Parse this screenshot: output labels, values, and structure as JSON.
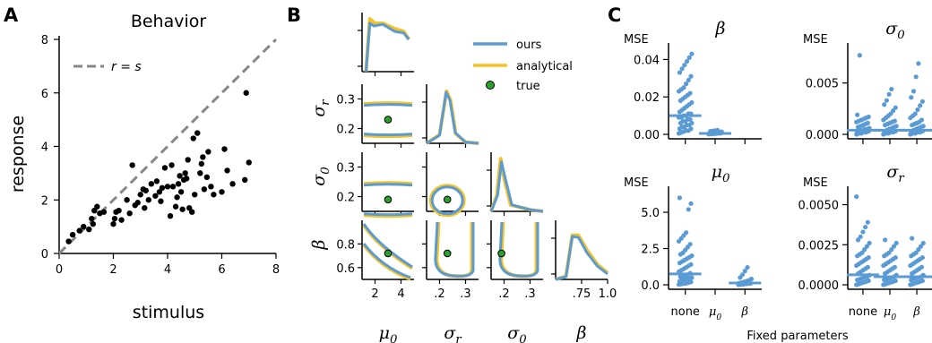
{
  "colors": {
    "ours": "#5b9bd5",
    "analytical": "#f6c324",
    "true_marker": "#2ca02c",
    "identity_line": "#888888",
    "points": "#000000"
  },
  "panels": {
    "a": "A",
    "b": "B",
    "c": "C"
  },
  "chart_data": [
    {
      "id": "A",
      "type": "scatter",
      "title": "Behavior",
      "xlabel": "stimulus",
      "ylabel": "response",
      "xlim": [
        0,
        8
      ],
      "ylim": [
        0,
        8
      ],
      "xticks": [
        "0",
        "2",
        "4",
        "6",
        "8"
      ],
      "yticks": [
        "0",
        "2",
        "4",
        "6",
        "8"
      ],
      "legend": {
        "position": "top-left",
        "label": "r = s",
        "style": "dashed"
      },
      "identity_line": [
        [
          0,
          0
        ],
        [
          8,
          8
        ]
      ],
      "points": [
        [
          0.35,
          0.45
        ],
        [
          0.5,
          0.7
        ],
        [
          0.75,
          0.85
        ],
        [
          0.9,
          1.0
        ],
        [
          1.1,
          0.9
        ],
        [
          1.2,
          1.3
        ],
        [
          1.25,
          1.1
        ],
        [
          1.3,
          1.6
        ],
        [
          1.4,
          1.75
        ],
        [
          1.5,
          1.5
        ],
        [
          1.65,
          1.55
        ],
        [
          2.0,
          1.1
        ],
        [
          2.05,
          1.3
        ],
        [
          2.1,
          1.55
        ],
        [
          2.2,
          1.6
        ],
        [
          2.3,
          1.25
        ],
        [
          2.5,
          2.0
        ],
        [
          2.6,
          1.5
        ],
        [
          2.7,
          3.3
        ],
        [
          2.8,
          1.8
        ],
        [
          2.9,
          1.9
        ],
        [
          3.0,
          2.2
        ],
        [
          3.1,
          2.4
        ],
        [
          3.15,
          1.7
        ],
        [
          3.2,
          2.35
        ],
        [
          3.3,
          2.0
        ],
        [
          3.4,
          2.6
        ],
        [
          3.55,
          2.15
        ],
        [
          3.6,
          2.7
        ],
        [
          3.7,
          2.3
        ],
        [
          3.75,
          1.95
        ],
        [
          3.8,
          2.45
        ],
        [
          3.9,
          3.2
        ],
        [
          4.0,
          2.5
        ],
        [
          4.1,
          1.4
        ],
        [
          4.2,
          2.5
        ],
        [
          4.3,
          1.75
        ],
        [
          4.35,
          2.1
        ],
        [
          4.4,
          2.6
        ],
        [
          4.45,
          2.9
        ],
        [
          4.5,
          2.3
        ],
        [
          4.55,
          1.65
        ],
        [
          4.6,
          2.75
        ],
        [
          4.65,
          3.0
        ],
        [
          4.7,
          2.8
        ],
        [
          4.75,
          3.5
        ],
        [
          4.8,
          1.7
        ],
        [
          4.9,
          1.55
        ],
        [
          4.95,
          4.3
        ],
        [
          5.0,
          2.2
        ],
        [
          5.1,
          4.5
        ],
        [
          5.2,
          3.0
        ],
        [
          5.3,
          3.6
        ],
        [
          5.35,
          2.4
        ],
        [
          5.45,
          2.85
        ],
        [
          5.5,
          3.8
        ],
        [
          5.6,
          2.5
        ],
        [
          5.7,
          2.2
        ],
        [
          6.0,
          2.3
        ],
        [
          6.2,
          3.1
        ],
        [
          6.4,
          2.6
        ],
        [
          6.85,
          2.75
        ],
        [
          6.9,
          6.0
        ],
        [
          7.0,
          3.4
        ],
        [
          6.1,
          3.9
        ],
        [
          5.25,
          3.35
        ],
        [
          4.15,
          3.3
        ]
      ]
    },
    {
      "id": "B",
      "type": "scatter",
      "legend": {
        "position": "top-right",
        "entries": [
          "ours",
          "analytical",
          "true"
        ]
      },
      "parameters": [
        "μ0",
        "σr",
        "σ0",
        "β"
      ],
      "axis_labels": {
        "x": [
          "μ0",
          "σr",
          "σ0",
          "β"
        ],
        "y": [
          "σr",
          "σ0",
          "β"
        ]
      },
      "ranges": {
        "mu0": [
          1,
          5
        ],
        "sigma_r": [
          0.15,
          0.35
        ],
        "sigma_0": [
          0.15,
          0.35
        ],
        "beta": [
          0.5,
          1.0
        ]
      },
      "x_ticks": {
        "mu0": [
          "2",
          "4"
        ],
        "sigma_r": [
          ".2",
          ".3"
        ],
        "sigma_0": [
          ".2",
          ".3"
        ],
        "beta": [
          ".75",
          "1.0"
        ]
      },
      "y_ticks": {
        "sigma_r": [
          "0.3",
          "0.2"
        ],
        "sigma_0": [
          "0.3",
          "0.2"
        ],
        "beta": [
          "0.8",
          "0.6"
        ]
      },
      "true_values": {
        "mu0": 3.0,
        "sigma_r": 0.23,
        "sigma_0": 0.19,
        "beta": 0.72
      },
      "marginals": {
        "mu0": {
          "ours": [
            [
              1.3,
              0
            ],
            [
              1.6,
              0.9
            ],
            [
              1.9,
              0.85
            ],
            [
              2.6,
              0.88
            ],
            [
              3.5,
              0.75
            ],
            [
              4.2,
              0.72
            ],
            [
              4.6,
              0.6
            ]
          ],
          "analytical": [
            [
              1.3,
              0
            ],
            [
              1.6,
              0.98
            ],
            [
              2.0,
              0.9
            ],
            [
              2.6,
              0.9
            ],
            [
              3.5,
              0.8
            ],
            [
              4.2,
              0.75
            ],
            [
              4.6,
              0.6
            ]
          ]
        },
        "sigma_r": {
          "ours": [
            [
              0.15,
              0
            ],
            [
              0.2,
              0.15
            ],
            [
              0.225,
              0.95
            ],
            [
              0.24,
              0.8
            ],
            [
              0.26,
              0.2
            ],
            [
              0.3,
              0.02
            ],
            [
              0.35,
              0
            ]
          ],
          "analytical": [
            [
              0.15,
              0
            ],
            [
              0.2,
              0.16
            ],
            [
              0.227,
              0.97
            ],
            [
              0.242,
              0.8
            ],
            [
              0.262,
              0.18
            ],
            [
              0.3,
              0.02
            ],
            [
              0.35,
              0
            ]
          ]
        },
        "sigma_0": {
          "ours": [
            [
              0.15,
              0
            ],
            [
              0.175,
              0.3
            ],
            [
              0.19,
              0.92
            ],
            [
              0.205,
              0.6
            ],
            [
              0.23,
              0.12
            ],
            [
              0.3,
              0.03
            ],
            [
              0.35,
              0
            ]
          ],
          "analytical": [
            [
              0.15,
              0
            ],
            [
              0.172,
              0.3
            ],
            [
              0.187,
              0.98
            ],
            [
              0.2,
              0.62
            ],
            [
              0.225,
              0.12
            ],
            [
              0.3,
              0.03
            ],
            [
              0.35,
              0
            ]
          ]
        },
        "beta": {
          "ours": [
            [
              0.5,
              0
            ],
            [
              0.6,
              0.05
            ],
            [
              0.66,
              0.8
            ],
            [
              0.72,
              0.78
            ],
            [
              0.8,
              0.5
            ],
            [
              0.9,
              0.25
            ],
            [
              1.0,
              0.1
            ]
          ],
          "analytical": [
            [
              0.5,
              0
            ],
            [
              0.6,
              0.06
            ],
            [
              0.66,
              0.82
            ],
            [
              0.72,
              0.82
            ],
            [
              0.8,
              0.55
            ],
            [
              0.9,
              0.28
            ],
            [
              1.0,
              0.12
            ]
          ]
        }
      }
    },
    {
      "id": "C",
      "type": "scatter",
      "xlabel": "Fixed parameters",
      "categories": [
        "none",
        "μ0",
        "β"
      ],
      "subplots": [
        {
          "title": "β",
          "ylabel": "MSE",
          "ylim": [
            0,
            0.045
          ],
          "yticks": [
            "0.00",
            "0.02",
            "0.04"
          ],
          "groups": [
            {
              "category": "none",
              "mean": 0.01,
              "points": [
                0.0005,
                0.001,
                0.0015,
                0.002,
                0.002,
                0.003,
                0.003,
                0.004,
                0.004,
                0.005,
                0.005,
                0.006,
                0.006,
                0.007,
                0.007,
                0.008,
                0.008,
                0.009,
                0.009,
                0.01,
                0.01,
                0.011,
                0.011,
                0.012,
                0.013,
                0.014,
                0.015,
                0.016,
                0.017,
                0.018,
                0.019,
                0.02,
                0.021,
                0.022,
                0.023,
                0.024,
                0.025,
                0.027,
                0.029,
                0.031,
                0.033,
                0.035,
                0.037,
                0.039,
                0.041,
                0.043
              ]
            },
            {
              "category": "μ0",
              "mean": 0.0005,
              "points": [
                0.0001,
                0.0002,
                0.0003,
                0.0004,
                0.0005,
                0.0006,
                0.0007,
                0.0008,
                0.0009,
                0.001,
                0.0012,
                0.0014,
                0.0016,
                0.0018,
                0.002,
                0.0022
              ]
            },
            {
              "category": "β",
              "mean": null,
              "points": []
            }
          ]
        },
        {
          "title": "σ0",
          "ylabel": "MSE",
          "ylim": [
            0,
            0.0082
          ],
          "yticks": [
            "0.000",
            "0.005"
          ],
          "groups": [
            {
              "category": "none",
              "mean": 0.0004,
              "points": [
                0.0,
                0.0001,
                0.0001,
                0.0002,
                0.0002,
                0.0003,
                0.0003,
                0.0004,
                0.0004,
                0.0005,
                0.0005,
                0.0006,
                0.0007,
                0.0008,
                0.0009,
                0.001,
                0.0011,
                0.0012,
                0.0013,
                0.0014,
                0.0015,
                0.0016,
                0.0017,
                0.0019,
                0.0077
              ]
            },
            {
              "category": "μ0",
              "mean": 0.0004,
              "points": [
                0.0,
                0.0001,
                0.0001,
                0.0002,
                0.0002,
                0.0003,
                0.0003,
                0.0004,
                0.0005,
                0.0006,
                0.0007,
                0.0008,
                0.0009,
                0.001,
                0.0011,
                0.0012,
                0.0013,
                0.0014,
                0.0016,
                0.0018,
                0.002,
                0.0023,
                0.0026,
                0.0029,
                0.0033,
                0.0039,
                0.0044
              ]
            },
            {
              "category": "β",
              "mean": 0.0004,
              "points": [
                0.0,
                0.0001,
                0.0001,
                0.0002,
                0.0002,
                0.0003,
                0.0003,
                0.0004,
                0.0005,
                0.0006,
                0.0007,
                0.0008,
                0.0009,
                0.001,
                0.0011,
                0.0012,
                0.0014,
                0.0016,
                0.0018,
                0.002,
                0.0024,
                0.0028,
                0.0032,
                0.0036,
                0.0042,
                0.0056,
                0.0069
              ]
            }
          ]
        },
        {
          "title": "μ0",
          "ylabel": "MSE",
          "ylim": [
            0,
            6.3
          ],
          "yticks": [
            "0.0",
            "2.5",
            "5.0"
          ],
          "groups": [
            {
              "category": "none",
              "mean": 0.75,
              "points": [
                0.02,
                0.05,
                0.08,
                0.1,
                0.15,
                0.2,
                0.25,
                0.3,
                0.35,
                0.4,
                0.45,
                0.5,
                0.55,
                0.6,
                0.65,
                0.7,
                0.8,
                0.9,
                1.0,
                1.1,
                1.2,
                1.3,
                1.4,
                1.5,
                1.6,
                1.7,
                1.8,
                1.9,
                2.0,
                2.1,
                2.2,
                2.4,
                2.6,
                2.8,
                3.0,
                3.2,
                3.4,
                3.6,
                5.2,
                5.6,
                6.0
              ]
            },
            {
              "category": "μ0",
              "mean": null,
              "points": []
            },
            {
              "category": "β",
              "mean": 0.12,
              "points": [
                0.0,
                0.02,
                0.04,
                0.06,
                0.08,
                0.1,
                0.12,
                0.15,
                0.2,
                0.25,
                0.3,
                0.4,
                0.5,
                0.7,
                0.95,
                1.2
              ]
            }
          ]
        },
        {
          "title": "σr",
          "ylabel": "MSE",
          "ylim": [
            0,
            0.0057
          ],
          "yticks": [
            "0.0000",
            "0.0025",
            "0.0050"
          ],
          "groups": [
            {
              "category": "none",
              "mean": 0.00062,
              "points": [
                0.0,
                5e-05,
                0.0001,
                0.00015,
                0.0002,
                0.00025,
                0.0003,
                0.00035,
                0.0004,
                0.00045,
                0.0005,
                0.0006,
                0.0007,
                0.0008,
                0.0009,
                0.001,
                0.0011,
                0.0012,
                0.0013,
                0.0014,
                0.0015,
                0.0016,
                0.0017,
                0.0018,
                0.0019,
                0.002,
                0.0022,
                0.0024,
                0.0026,
                0.0028,
                0.003,
                0.0033,
                0.0036,
                0.0039,
                0.0055
              ]
            },
            {
              "category": "μ0",
              "mean": 0.0005,
              "points": [
                0.0,
                5e-05,
                0.0001,
                0.00015,
                0.0002,
                0.00025,
                0.0003,
                0.00035,
                0.0004,
                0.00045,
                0.0005,
                0.0006,
                0.0007,
                0.0008,
                0.0009,
                0.001,
                0.0011,
                0.0012,
                0.0013,
                0.0014,
                0.0015,
                0.0016,
                0.0017,
                0.0018,
                0.0019,
                0.002,
                0.0022,
                0.0024,
                0.0026,
                0.0028
              ]
            },
            {
              "category": "β",
              "mean": 0.0005,
              "points": [
                0.0,
                5e-05,
                0.0001,
                0.00015,
                0.0002,
                0.00025,
                0.0003,
                0.00035,
                0.0004,
                0.00045,
                0.0005,
                0.0006,
                0.0007,
                0.0008,
                0.0009,
                0.001,
                0.0011,
                0.0012,
                0.0013,
                0.0014,
                0.0015,
                0.0016,
                0.0017,
                0.0018,
                0.0019,
                0.002,
                0.0022,
                0.0024,
                0.0026,
                0.0029
              ]
            }
          ]
        }
      ]
    }
  ]
}
